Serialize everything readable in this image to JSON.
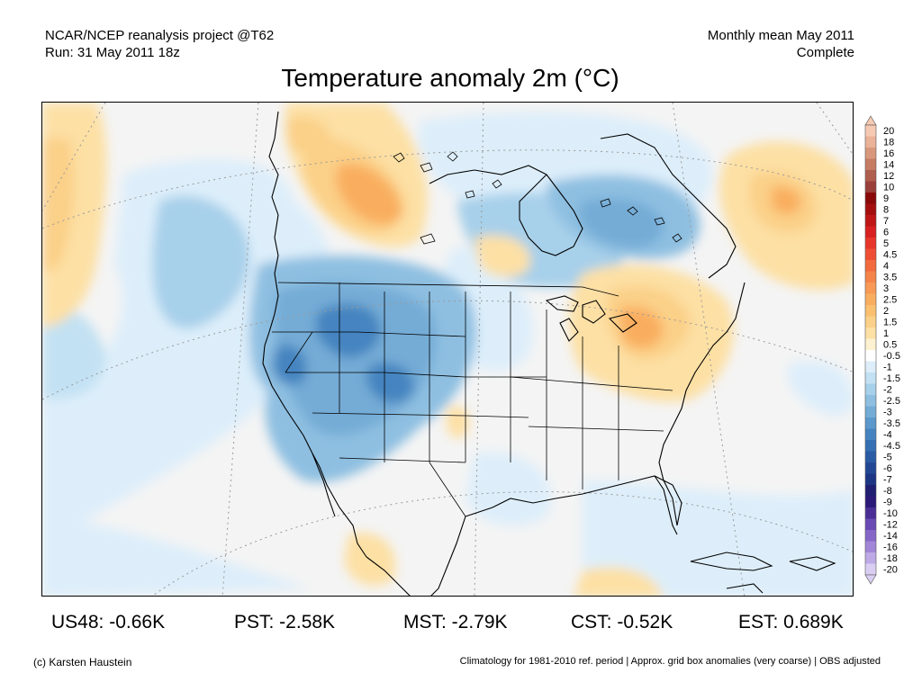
{
  "header": {
    "source": "NCAR/NCEP reanalysis project @T62",
    "run": "Run: 31 May 2011 18z",
    "period": "Monthly mean May 2011",
    "status": "Complete"
  },
  "title": "Temperature anomaly 2m (°C)",
  "colorbar": {
    "labels": [
      "20",
      "18",
      "16",
      "14",
      "12",
      "10",
      "9",
      "8",
      "7",
      "6",
      "5",
      "4.5",
      "4",
      "3.5",
      "3",
      "2.5",
      "2",
      "1.5",
      "1",
      "0.5",
      "-0.5",
      "-1",
      "-1.5",
      "-2",
      "-2.5",
      "-3",
      "-3.5",
      "-4",
      "-4.5",
      "-5",
      "-6",
      "-7",
      "-8",
      "-9",
      "-10",
      "-12",
      "-14",
      "-16",
      "-18",
      "-20"
    ],
    "colors": [
      "#f6c9b3",
      "#eab297",
      "#d9987b",
      "#c67b63",
      "#b05e4e",
      "#9a3f3a",
      "#8a0a0a",
      "#a50f0f",
      "#c01616",
      "#d82020",
      "#e8352a",
      "#ef4e35",
      "#f26a3e",
      "#f5844a",
      "#f89a55",
      "#f9ae5f",
      "#fbc06f",
      "#fbd088",
      "#fde0a4",
      "#fdf1cf",
      "#ffffff",
      "#ddeefa",
      "#c2e1f3",
      "#a7d0ea",
      "#8ebfe1",
      "#74acd6",
      "#5b98cb",
      "#4584c0",
      "#3570b3",
      "#2a5ca5",
      "#224895",
      "#1d3683",
      "#201f71",
      "#2b1a78",
      "#4a2e96",
      "#6a4bb5",
      "#8667c8",
      "#a286d8",
      "#beaae6",
      "#d9ceF2"
    ]
  },
  "stats": [
    {
      "label": "US48: -0.66K"
    },
    {
      "label": "PST: -2.58K"
    },
    {
      "label": "MST: -2.79K"
    },
    {
      "label": "CST: -0.52K"
    },
    {
      "label": "EST: 0.689K"
    }
  ],
  "footer": {
    "credit": "(c) Karsten Haustein",
    "note": "Climatology for 1981-2010 ref. period | Approx. grid box anomalies (very coarse) | OBS adjusted"
  }
}
